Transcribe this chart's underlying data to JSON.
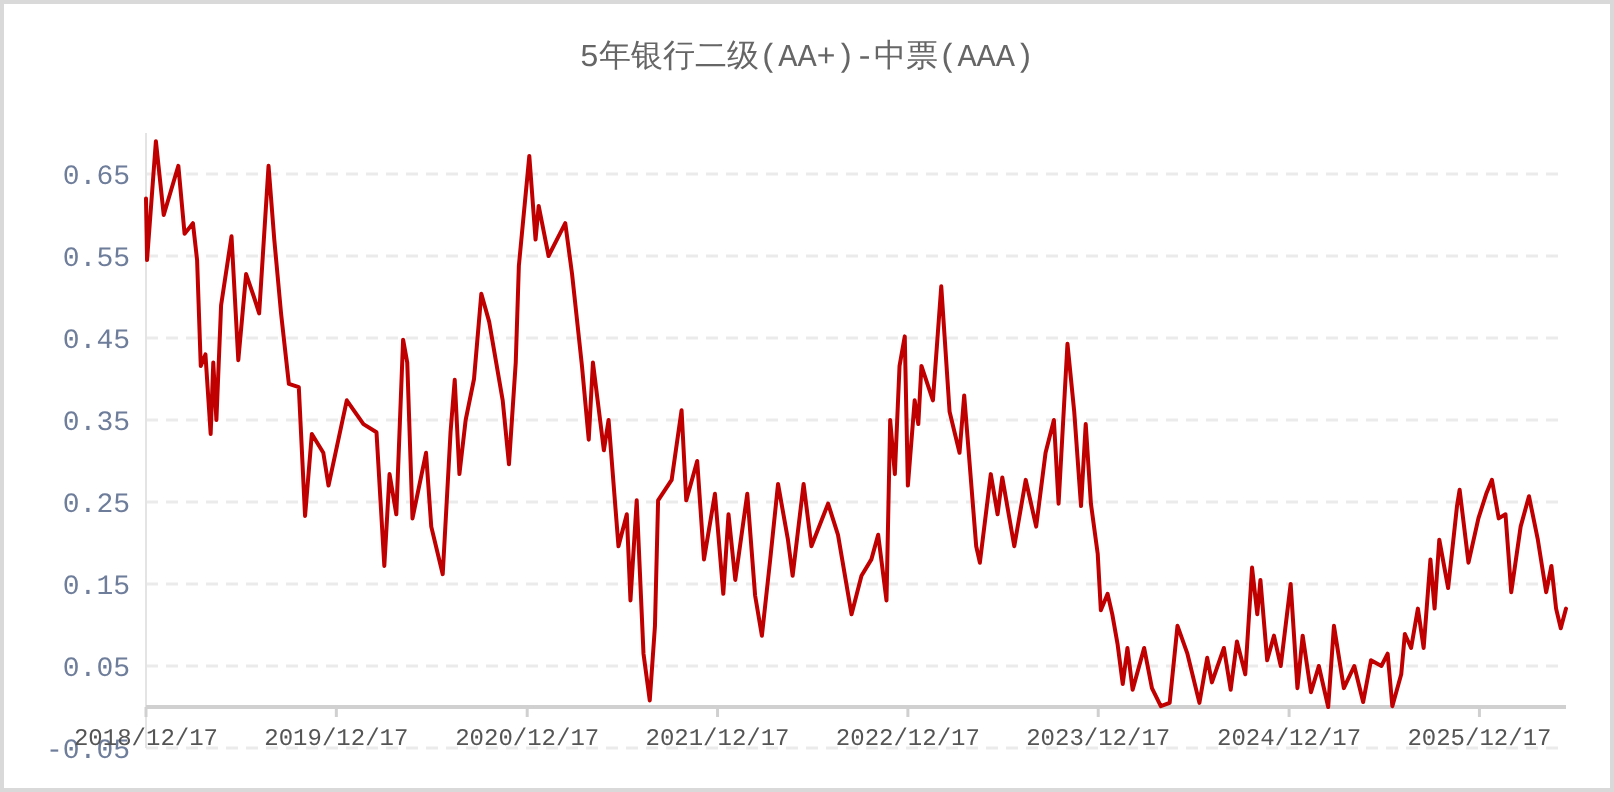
{
  "chart_data": {
    "type": "line",
    "title": "5年银行二级(AA+)-中票(AAA)",
    "xlim": [
      "2018-12-17",
      "2026-06-01"
    ],
    "xticks": [
      {
        "value": "2018-12-17",
        "label": "2018/12/17"
      },
      {
        "value": "2019-12-17",
        "label": "2019/12/17"
      },
      {
        "value": "2020-12-17",
        "label": "2020/12/17"
      },
      {
        "value": "2021-12-17",
        "label": "2021/12/17"
      },
      {
        "value": "2022-12-17",
        "label": "2022/12/17"
      },
      {
        "value": "2023-12-17",
        "label": "2023/12/17"
      },
      {
        "value": "2024-12-17",
        "label": "2024/12/17"
      },
      {
        "value": "2025-12-17",
        "label": "2025/12/17"
      }
    ],
    "ylim": [
      -0.05,
      0.7
    ],
    "yticks": [
      -0.05,
      0.05,
      0.15,
      0.25,
      0.35,
      0.45,
      0.55,
      0.65
    ],
    "grid": "y",
    "marker": "none",
    "line_style": "solid",
    "series": [
      {
        "color": "#c00000",
        "x": [
          "2018-12-17",
          "2018-12-19",
          "2019-01-05",
          "2019-01-20",
          "2019-02-17",
          "2019-03-01",
          "2019-03-17",
          "2019-03-25",
          "2019-04-01",
          "2019-04-10",
          "2019-04-20",
          "2019-04-25",
          "2019-05-01",
          "2019-05-10",
          "2019-05-30",
          "2019-06-12",
          "2019-06-27",
          "2019-07-12",
          "2019-07-22",
          "2019-08-09",
          "2019-08-20",
          "2019-09-02",
          "2019-09-17",
          "2019-10-06",
          "2019-10-18",
          "2019-10-31",
          "2019-11-22",
          "2019-12-02",
          "2020-01-06",
          "2020-02-07",
          "2020-03-03",
          "2020-03-18",
          "2020-03-28",
          "2020-04-10",
          "2020-04-23",
          "2020-05-01",
          "2020-05-11",
          "2020-06-06",
          "2020-06-16",
          "2020-07-08",
          "2020-07-23",
          "2020-07-31",
          "2020-08-09",
          "2020-08-21",
          "2020-09-06",
          "2020-09-20",
          "2020-10-05",
          "2020-10-31",
          "2020-11-12",
          "2020-11-25",
          "2020-12-01",
          "2020-12-21",
          "2021-01-02",
          "2021-01-08",
          "2021-01-27",
          "2021-02-28",
          "2021-03-13",
          "2021-04-01",
          "2021-04-14",
          "2021-04-22",
          "2021-05-13",
          "2021-05-22",
          "2021-06-10",
          "2021-06-26",
          "2021-07-03",
          "2021-07-15",
          "2021-07-28",
          "2021-08-09",
          "2021-08-19",
          "2021-08-25",
          "2021-09-20",
          "2021-10-09",
          "2021-10-18",
          "2021-11-08",
          "2021-11-21",
          "2021-12-12",
          "2021-12-28",
          "2022-01-07",
          "2022-01-20",
          "2022-02-12",
          "2022-02-27",
          "2022-03-12",
          "2022-03-28",
          "2022-04-12",
          "2022-05-01",
          "2022-05-10",
          "2022-05-31",
          "2022-06-15",
          "2022-07-17",
          "2022-08-05",
          "2022-08-31",
          "2022-09-19",
          "2022-10-08",
          "2022-10-21",
          "2022-11-06",
          "2022-11-13",
          "2022-11-22",
          "2022-12-01",
          "2022-12-11",
          "2022-12-17",
          "2022-12-30",
          "2023-01-06",
          "2023-01-12",
          "2023-02-03",
          "2023-02-19",
          "2023-03-07",
          "2023-03-26",
          "2023-04-04",
          "2023-04-27",
          "2023-05-04",
          "2023-05-25",
          "2023-06-07",
          "2023-06-16",
          "2023-07-09",
          "2023-07-31",
          "2023-08-20",
          "2023-09-07",
          "2023-09-23",
          "2023-10-02",
          "2023-10-06",
          "2023-10-19",
          "2023-11-01",
          "2023-11-14",
          "2023-11-23",
          "2023-12-03",
          "2023-12-16",
          "2023-12-22",
          "2024-01-04",
          "2024-01-13",
          "2024-01-23",
          "2024-02-02",
          "2024-02-11",
          "2024-02-21",
          "2024-03-14",
          "2024-03-29",
          "2024-04-15",
          "2024-05-02",
          "2024-05-17",
          "2024-06-05",
          "2024-06-28",
          "2024-07-13",
          "2024-07-22",
          "2024-08-14",
          "2024-08-27",
          "2024-09-08",
          "2024-09-24",
          "2024-10-07",
          "2024-10-17",
          "2024-10-23",
          "2024-11-05",
          "2024-11-18",
          "2024-12-01",
          "2024-12-20",
          "2025-01-02",
          "2025-01-12",
          "2025-01-28",
          "2025-02-12",
          "2025-03-02",
          "2025-03-13",
          "2025-04-01",
          "2025-04-21",
          "2025-05-08",
          "2025-05-23",
          "2025-06-12",
          "2025-06-24",
          "2025-07-03",
          "2025-07-20",
          "2025-07-27",
          "2025-08-08",
          "2025-08-21",
          "2025-09-01",
          "2025-09-14",
          "2025-09-22",
          "2025-10-01",
          "2025-10-18",
          "2025-11-04",
          "2025-11-09",
          "2025-11-26",
          "2025-12-15",
          "2025-12-30",
          "2026-01-10",
          "2026-01-23",
          "2026-02-05",
          "2026-02-16",
          "2026-03-06",
          "2026-03-22",
          "2026-04-08",
          "2026-04-24",
          "2026-05-04",
          "2026-05-13",
          "2026-05-22",
          "2026-06-01"
        ],
        "values": [
          0.62,
          0.545,
          0.69,
          0.6,
          0.66,
          0.577,
          0.59,
          0.545,
          0.416,
          0.43,
          0.333,
          0.42,
          0.35,
          0.49,
          0.574,
          0.423,
          0.528,
          0.5,
          0.48,
          0.66,
          0.57,
          0.48,
          0.394,
          0.39,
          0.233,
          0.333,
          0.31,
          0.27,
          0.374,
          0.345,
          0.335,
          0.172,
          0.284,
          0.235,
          0.448,
          0.42,
          0.23,
          0.31,
          0.22,
          0.162,
          0.335,
          0.399,
          0.284,
          0.35,
          0.4,
          0.504,
          0.47,
          0.374,
          0.296,
          0.42,
          0.538,
          0.672,
          0.57,
          0.611,
          0.55,
          0.59,
          0.528,
          0.416,
          0.326,
          0.42,
          0.313,
          0.35,
          0.196,
          0.235,
          0.13,
          0.252,
          0.065,
          0.008,
          0.099,
          0.252,
          0.277,
          0.362,
          0.252,
          0.3,
          0.18,
          0.26,
          0.138,
          0.235,
          0.155,
          0.26,
          0.136,
          0.087,
          0.18,
          0.272,
          0.204,
          0.16,
          0.272,
          0.196,
          0.248,
          0.21,
          0.113,
          0.16,
          0.18,
          0.21,
          0.13,
          0.35,
          0.284,
          0.416,
          0.452,
          0.27,
          0.374,
          0.345,
          0.416,
          0.374,
          0.513,
          0.36,
          0.31,
          0.38,
          0.196,
          0.176,
          0.284,
          0.235,
          0.28,
          0.196,
          0.277,
          0.22,
          0.31,
          0.35,
          0.248,
          0.294,
          0.443,
          0.36,
          0.245,
          0.345,
          0.248,
          0.187,
          0.118,
          0.138,
          0.113,
          0.077,
          0.028,
          0.072,
          0.021,
          0.072,
          0.023,
          0.001,
          0.005,
          0.099,
          0.065,
          0.005,
          0.06,
          0.03,
          0.072,
          0.021,
          0.08,
          0.04,
          0.17,
          0.113,
          0.155,
          0.057,
          0.087,
          0.05,
          0.15,
          0.023,
          0.087,
          0.018,
          0.05,
          0.0,
          0.099,
          0.023,
          0.05,
          0.006,
          0.057,
          0.05,
          0.065,
          0.001,
          0.04,
          0.089,
          0.072,
          0.12,
          0.072,
          0.18,
          0.12,
          0.204,
          0.145,
          0.245,
          0.265,
          0.176,
          0.23,
          0.26,
          0.277,
          0.23,
          0.235,
          0.14,
          0.22,
          0.257,
          0.204,
          0.14,
          0.172,
          0.12,
          0.096,
          0.12
        ]
      }
    ]
  }
}
